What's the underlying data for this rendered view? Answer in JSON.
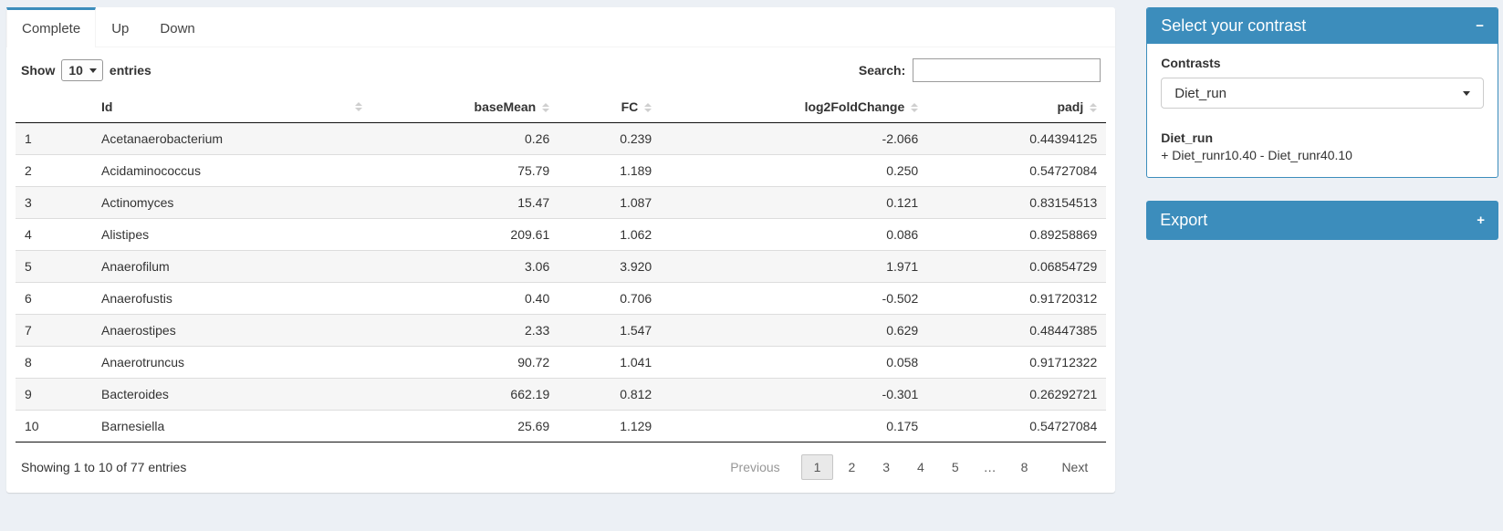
{
  "colors": {
    "accent": "#3c8dbc",
    "stripe": "#f6f6f6"
  },
  "tabs": [
    {
      "label": "Complete",
      "active": true
    },
    {
      "label": "Up",
      "active": false
    },
    {
      "label": "Down",
      "active": false
    }
  ],
  "length_menu": {
    "label_before": "Show",
    "selected": "10",
    "label_after": "entries"
  },
  "search": {
    "label": "Search:",
    "value": "",
    "placeholder": ""
  },
  "table": {
    "columns": [
      {
        "label": "",
        "align": "left",
        "sortable": false
      },
      {
        "label": "Id",
        "align": "left",
        "sortable": true
      },
      {
        "label": "baseMean",
        "align": "right",
        "sortable": true
      },
      {
        "label": "FC",
        "align": "right",
        "sortable": true
      },
      {
        "label": "log2FoldChange",
        "align": "right",
        "sortable": true
      },
      {
        "label": "padj",
        "align": "right",
        "sortable": true
      }
    ],
    "rows": [
      [
        "1",
        "Acetanaerobacterium",
        "0.26",
        "0.239",
        "-2.066",
        "0.44394125"
      ],
      [
        "2",
        "Acidaminococcus",
        "75.79",
        "1.189",
        "0.250",
        "0.54727084"
      ],
      [
        "3",
        "Actinomyces",
        "15.47",
        "1.087",
        "0.121",
        "0.83154513"
      ],
      [
        "4",
        "Alistipes",
        "209.61",
        "1.062",
        "0.086",
        "0.89258869"
      ],
      [
        "5",
        "Anaerofilum",
        "3.06",
        "3.920",
        "1.971",
        "0.06854729"
      ],
      [
        "6",
        "Anaerofustis",
        "0.40",
        "0.706",
        "-0.502",
        "0.91720312"
      ],
      [
        "7",
        "Anaerostipes",
        "2.33",
        "1.547",
        "0.629",
        "0.48447385"
      ],
      [
        "8",
        "Anaerotruncus",
        "90.72",
        "1.041",
        "0.058",
        "0.91712322"
      ],
      [
        "9",
        "Bacteroides",
        "662.19",
        "0.812",
        "-0.301",
        "0.26292721"
      ],
      [
        "10",
        "Barnesiella",
        "25.69",
        "1.129",
        "0.175",
        "0.54727084"
      ]
    ]
  },
  "info": "Showing 1 to 10 of 77 entries",
  "pagination": {
    "previous": "Previous",
    "pages": [
      "1",
      "2",
      "3",
      "4",
      "5",
      "…",
      "8"
    ],
    "current": "1",
    "next": "Next"
  },
  "contrast_panel": {
    "title": "Select your contrast",
    "collapse_icon": "−",
    "contrasts_label": "Contrasts",
    "selected_contrast": "Diet_run",
    "contrast_name": "Diet_run",
    "contrast_formula": "+ Diet_runr10.40 - Diet_runr40.10"
  },
  "export_panel": {
    "title": "Export",
    "expand_icon": "+"
  }
}
